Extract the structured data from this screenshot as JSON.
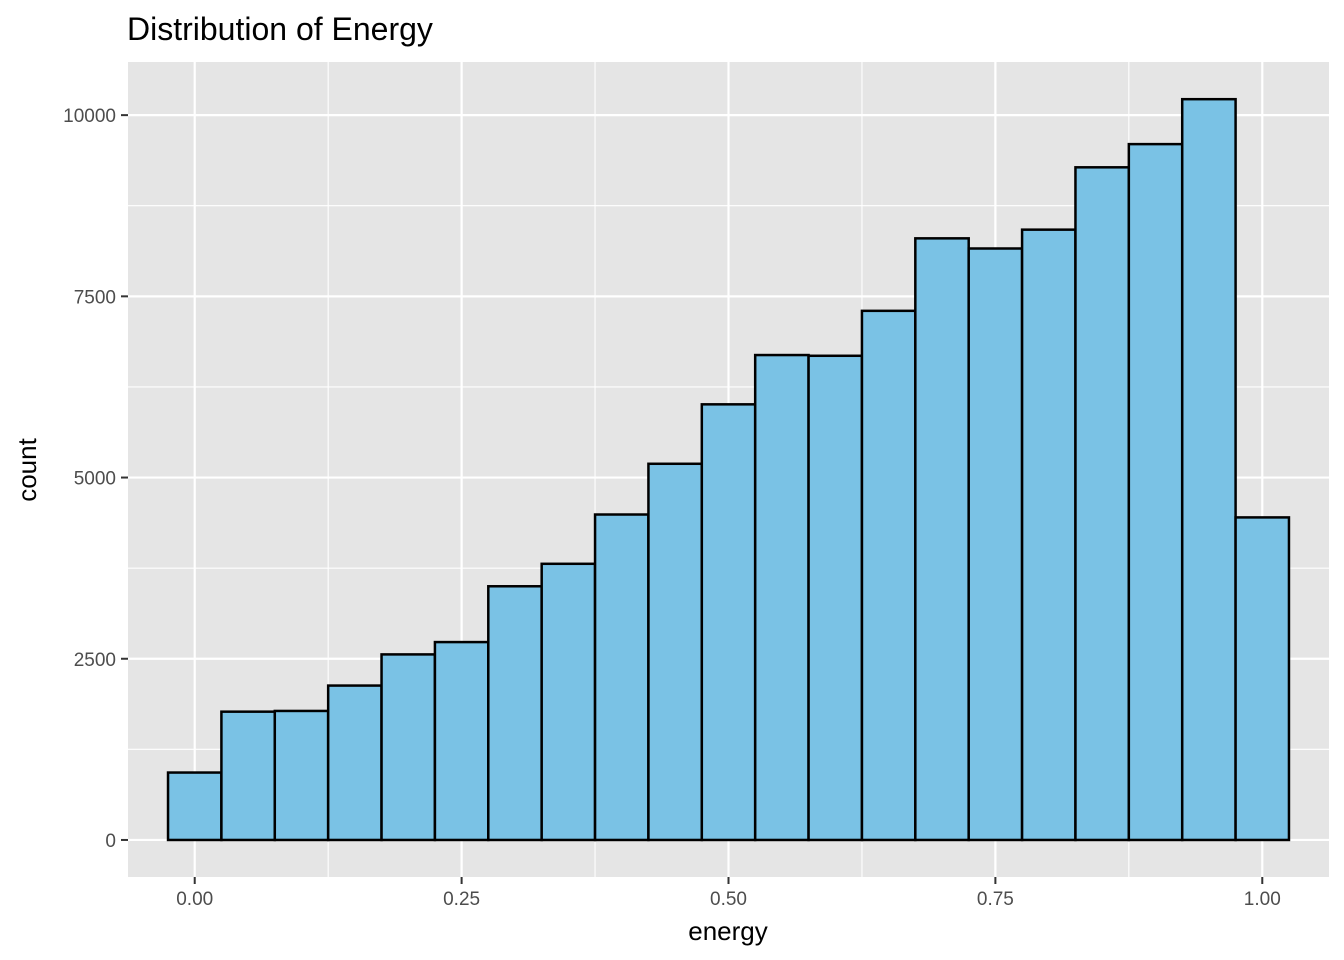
{
  "chart_data": {
    "type": "bar",
    "title": "Distribution of Energy",
    "xlabel": "energy",
    "ylabel": "count",
    "bin_width": 0.05,
    "bin_centers": [
      0.0,
      0.05,
      0.1,
      0.15,
      0.2,
      0.25,
      0.3,
      0.35,
      0.4,
      0.45,
      0.5,
      0.55,
      0.6,
      0.65,
      0.7,
      0.75,
      0.8,
      0.85,
      0.9,
      0.95,
      1.0
    ],
    "values": [
      930,
      1770,
      1780,
      2130,
      2560,
      2730,
      3500,
      3810,
      4490,
      5190,
      6010,
      6690,
      6680,
      7300,
      8300,
      8160,
      8420,
      9280,
      9600,
      10220,
      4450
    ],
    "xlim": [
      -0.0625,
      1.0625
    ],
    "ylim": [
      -511,
      10733
    ],
    "x_ticks": [
      0.0,
      0.25,
      0.5,
      0.75,
      1.0
    ],
    "x_tick_labels": [
      "0.00",
      "0.25",
      "0.50",
      "0.75",
      "1.00"
    ],
    "y_ticks": [
      0,
      2500,
      5000,
      7500,
      10000
    ],
    "y_tick_labels": [
      "0",
      "2500",
      "5000",
      "7500",
      "10000"
    ],
    "grid": true,
    "colors": {
      "bar_fill": "#7AC2E5",
      "bar_outline": "#000000",
      "panel": "#E5E5E5"
    }
  }
}
